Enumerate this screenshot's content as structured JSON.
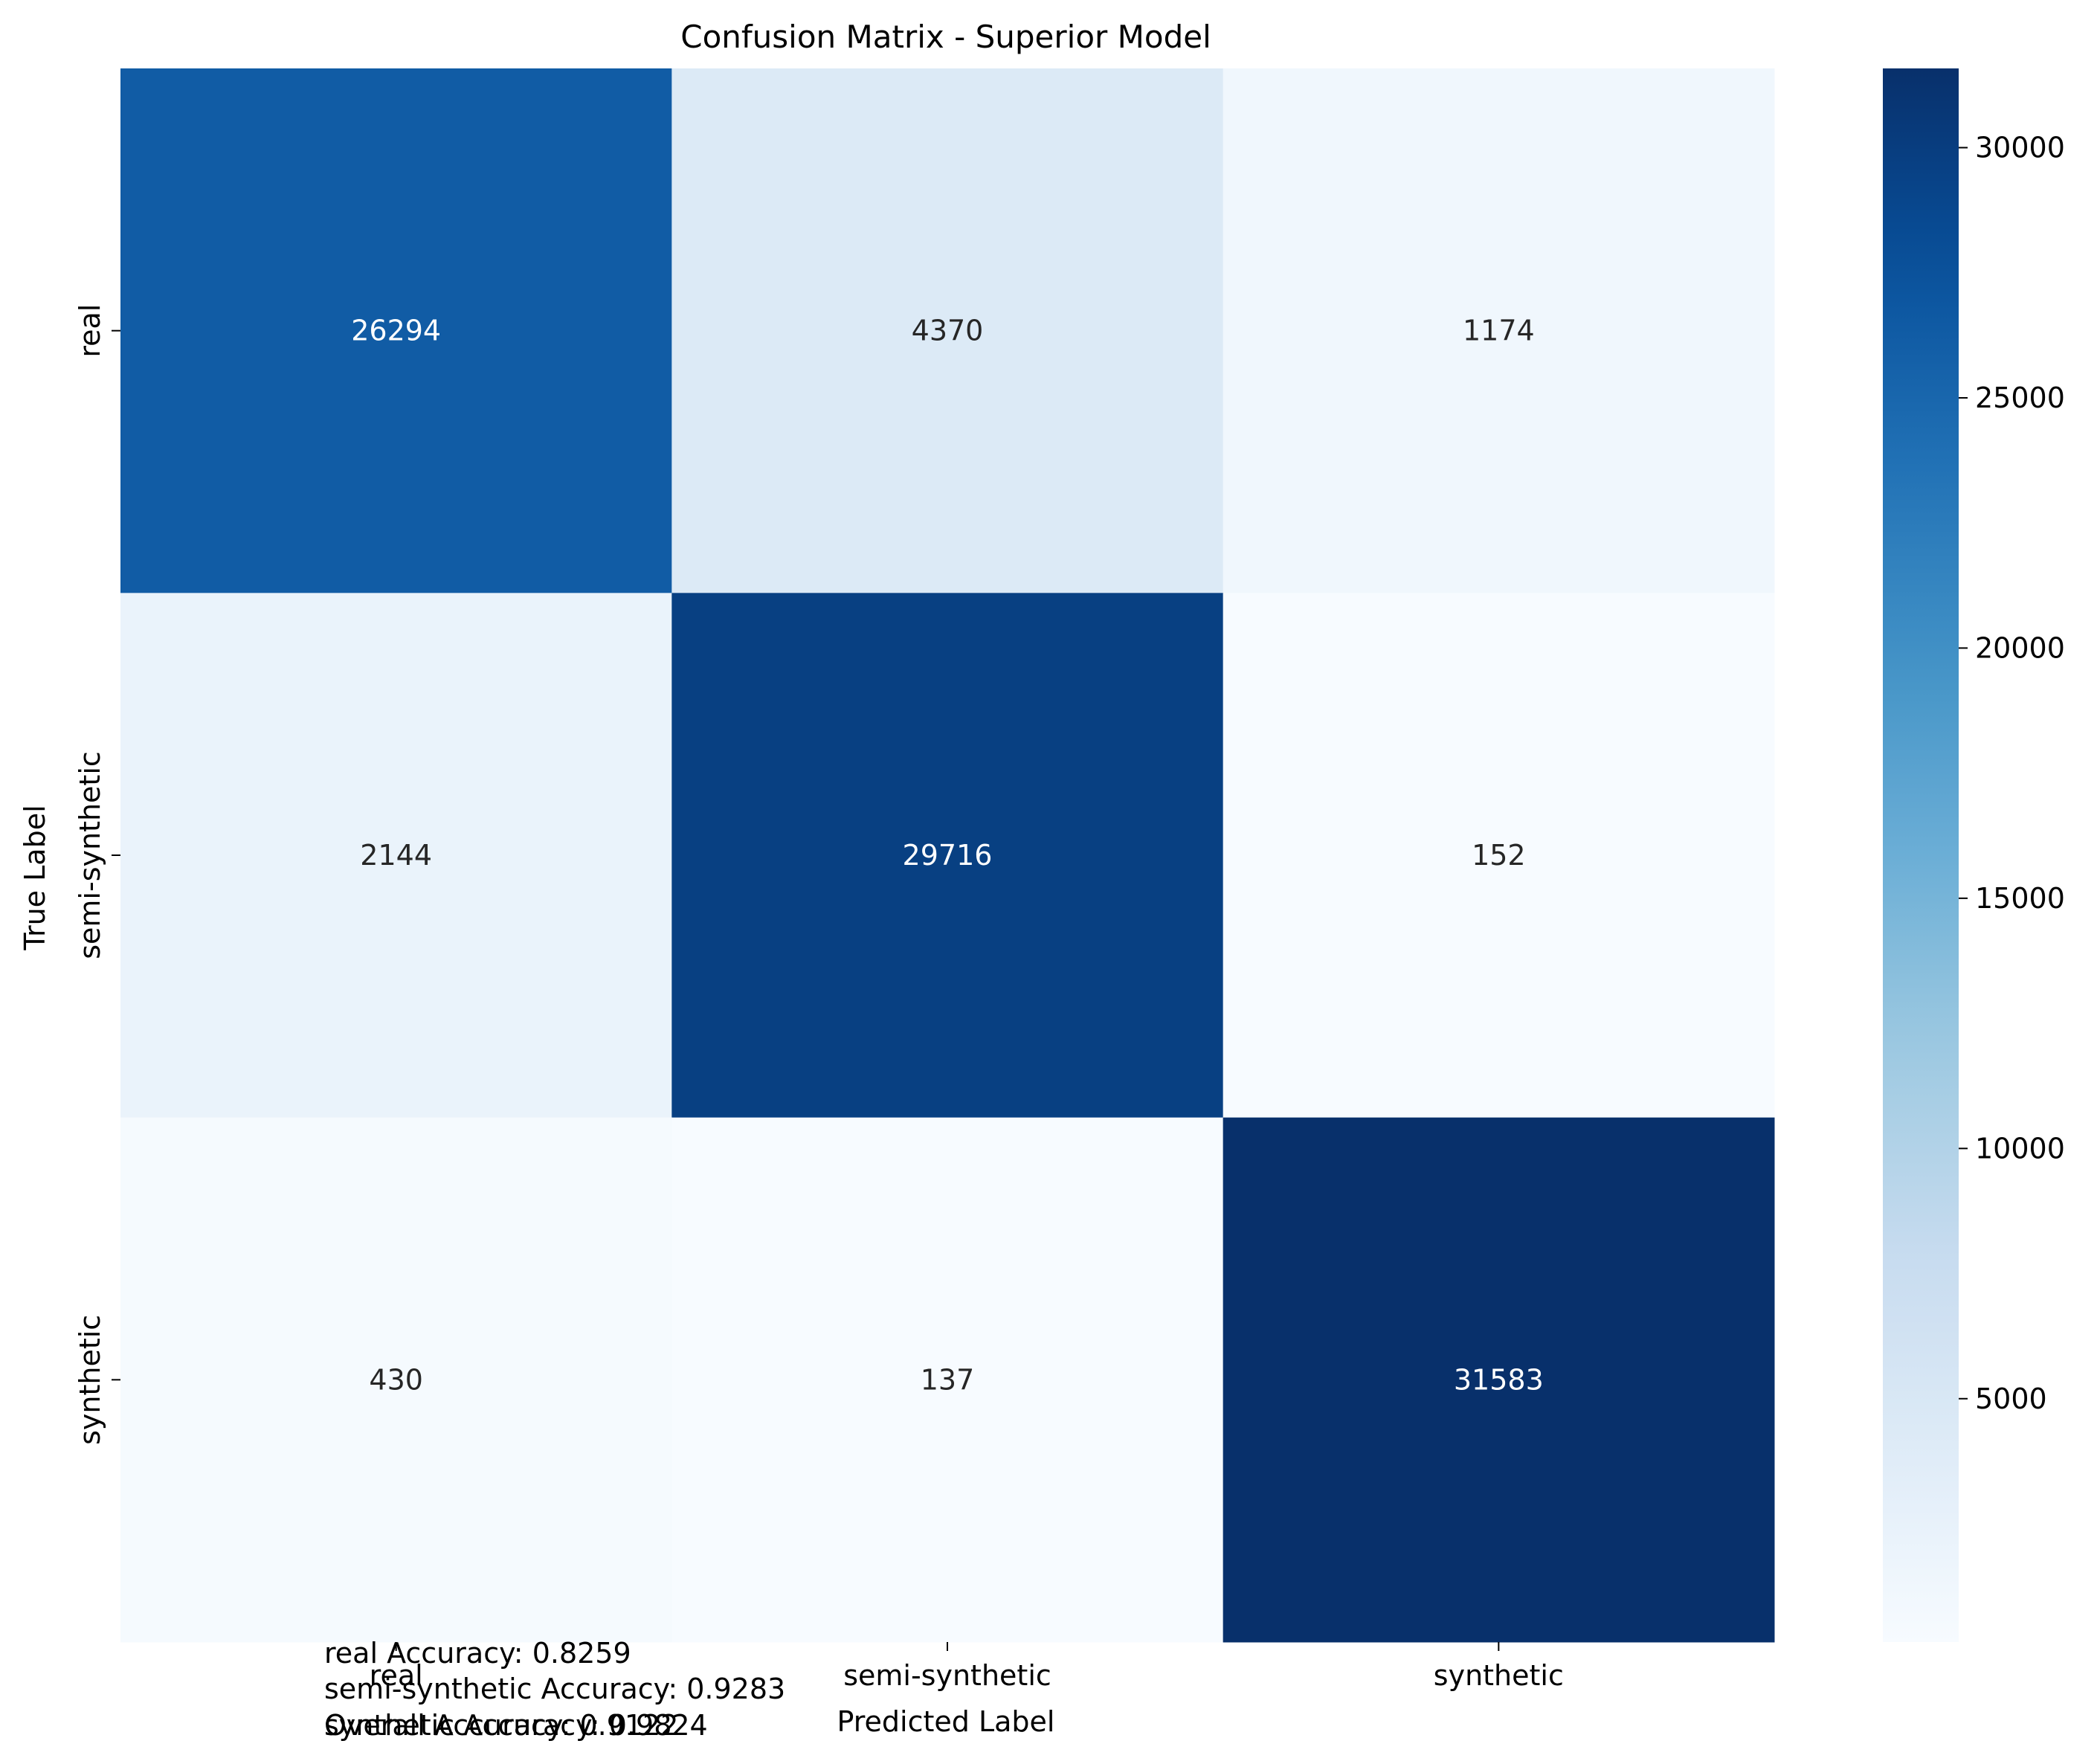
{
  "chart_data": {
    "type": "heatmap",
    "title": "Confusion Matrix - Superior Model",
    "xlabel": "Predicted Label",
    "ylabel": "True Label",
    "x_categories": [
      "real",
      "semi-synthetic",
      "synthetic"
    ],
    "y_categories": [
      "real",
      "semi-synthetic",
      "synthetic"
    ],
    "values": [
      [
        26294,
        4370,
        1174
      ],
      [
        2144,
        29716,
        152
      ],
      [
        430,
        137,
        31583
      ]
    ],
    "colormap": "Blues",
    "color_range": [
      137,
      31583
    ],
    "colorbar_ticks": [
      5000,
      10000,
      15000,
      20000,
      25000,
      30000
    ],
    "annotations": [
      "real Accuracy: 0.8259",
      "semi-synthetic Accuracy: 0.9283",
      "synthetic Accuracy: 0.9824",
      "Overall Accuracy: 0.9122"
    ]
  }
}
